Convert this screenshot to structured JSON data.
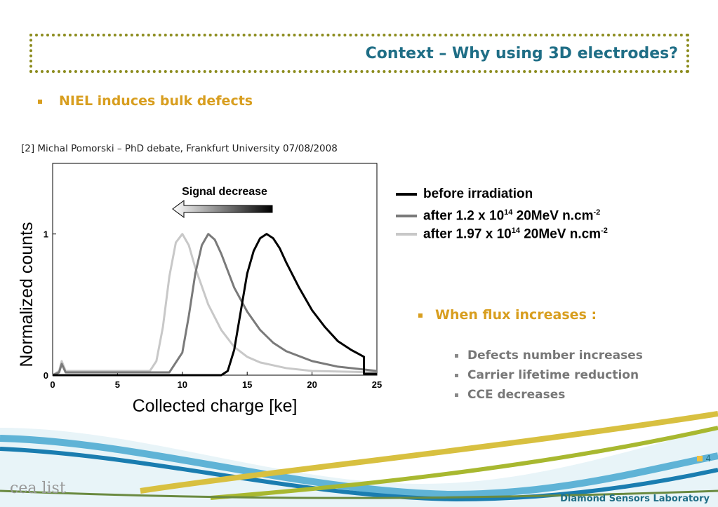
{
  "slide": {
    "title": "Context – Why using 3D electrodes?",
    "bullet1": "NIEL induces bulk defects",
    "reference": "[2] Michal Pomorski – PhD debate, Frankfurt University 07/08/2008",
    "bullet2": "When flux increases :",
    "sub_bullets": [
      "Defects number increases",
      "Carrier lifetime reduction",
      "CCE decreases"
    ],
    "footer": "Diamond Sensors Laboratory",
    "page_number": "4",
    "logo_text": "cea list"
  },
  "legend": {
    "series": [
      {
        "label": "before irradiation",
        "exp": "",
        "suffix": ""
      },
      {
        "label": "after 1.2 x 10",
        "exp": "14",
        "suffix": " 20MeV n.cm",
        "exp2": "-2"
      },
      {
        "label": "after 1.97 x 10",
        "exp": "14",
        "suffix": " 20MeV n.cm",
        "exp2": "-2"
      }
    ]
  },
  "colors": {
    "title": "#1f6e86",
    "accent": "#d89e1f",
    "series": [
      "#000000",
      "#7a7a7a",
      "#c8c8c8"
    ]
  },
  "chart_data": {
    "type": "line",
    "xlabel": "Collected charge [ke]",
    "ylabel": "Normalized counts",
    "xlim": [
      0,
      25
    ],
    "ylim": [
      0,
      1.5
    ],
    "xticks": [
      0,
      5,
      10,
      15,
      20,
      25
    ],
    "yticks": [
      0,
      1
    ],
    "annotation": "Signal decrease",
    "series": [
      {
        "name": "before irradiation",
        "color": "#000000",
        "x": [
          0,
          13.0,
          13.5,
          14.0,
          14.5,
          15.0,
          15.5,
          16.0,
          16.5,
          17.0,
          17.5,
          18.0,
          19.0,
          20.0,
          21.0,
          22.0,
          23.0,
          24.0,
          24.0,
          25
        ],
        "y": [
          0,
          0,
          0.03,
          0.18,
          0.45,
          0.72,
          0.88,
          0.97,
          1.0,
          0.97,
          0.9,
          0.8,
          0.62,
          0.46,
          0.34,
          0.24,
          0.18,
          0.13,
          0.01,
          0.01
        ]
      },
      {
        "name": "after 1.2 x 10^14 20MeV n.cm^-2",
        "color": "#7a7a7a",
        "x": [
          0,
          0.5,
          0.7,
          1.0,
          9.0,
          10.0,
          10.5,
          11.0,
          11.5,
          12.0,
          12.5,
          13.0,
          13.5,
          14.0,
          15.0,
          16.0,
          17.0,
          18.0,
          20.0,
          22.0,
          25.0
        ],
        "y": [
          0,
          0.02,
          0.08,
          0.02,
          0.02,
          0.16,
          0.42,
          0.72,
          0.92,
          1.0,
          0.96,
          0.86,
          0.74,
          0.62,
          0.45,
          0.32,
          0.23,
          0.17,
          0.1,
          0.06,
          0.03
        ]
      },
      {
        "name": "after 1.97 x 10^14 20MeV n.cm^-2",
        "color": "#c8c8c8",
        "x": [
          0,
          0.5,
          0.7,
          1.0,
          7.5,
          8.0,
          8.5,
          9.0,
          9.5,
          10.0,
          10.5,
          11.0,
          12.0,
          13.0,
          14.0,
          15.0,
          16.0,
          18.0,
          20.0,
          25.0
        ],
        "y": [
          0,
          0.03,
          0.1,
          0.03,
          0.03,
          0.1,
          0.34,
          0.7,
          0.94,
          1.0,
          0.92,
          0.76,
          0.5,
          0.32,
          0.2,
          0.13,
          0.09,
          0.05,
          0.03,
          0.02
        ]
      }
    ]
  }
}
